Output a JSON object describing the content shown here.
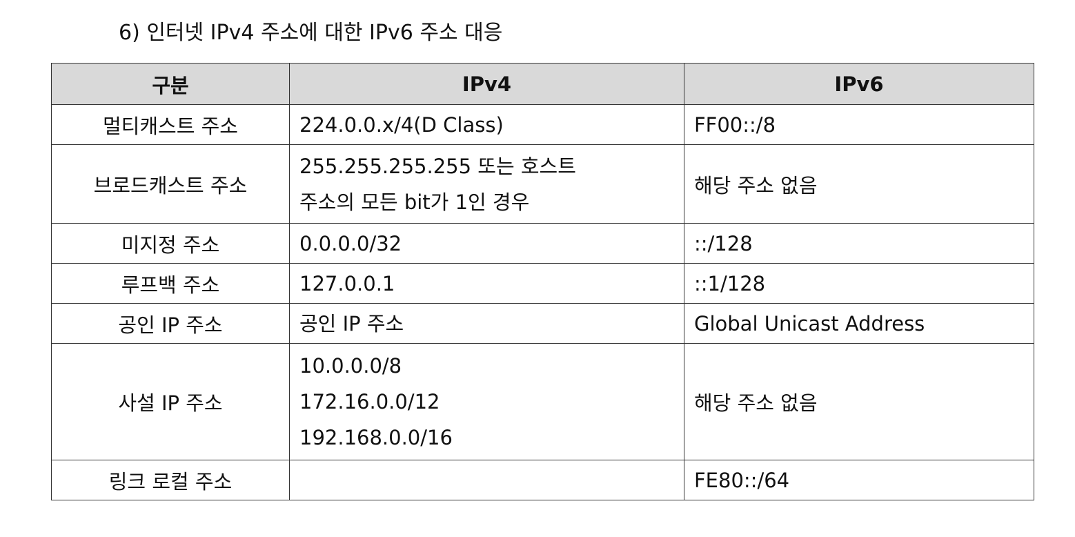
{
  "document": {
    "heading": "6) 인터넷 IPv4 주소에 대한 IPv6 주소 대응"
  },
  "table": {
    "headers": [
      "구분",
      "IPv4",
      "IPv6"
    ],
    "rows": [
      {
        "label": "멀티캐스트 주소",
        "ipv4": [
          "224.0.0.x/4(D Class)"
        ],
        "ipv6": "FF00::/8"
      },
      {
        "label": "브로드캐스트 주소",
        "ipv4": [
          "255.255.255.255 또는 호스트",
          "주소의 모든 bit가 1인 경우"
        ],
        "ipv6": "해당 주소 없음"
      },
      {
        "label": "미지정 주소",
        "ipv4": [
          "0.0.0.0/32"
        ],
        "ipv6": "::/128"
      },
      {
        "label": "루프백 주소",
        "ipv4": [
          "127.0.0.1"
        ],
        "ipv6": "::1/128"
      },
      {
        "label": "공인 IP 주소",
        "ipv4": [
          "공인 IP 주소"
        ],
        "ipv6": "Global Unicast Address"
      },
      {
        "label": "사설 IP 주소",
        "ipv4": [
          "10.0.0.0/8",
          "172.16.0.0/12",
          "192.168.0.0/16"
        ],
        "ipv6": "해당 주소 없음"
      },
      {
        "label": "링크 로컬 주소",
        "ipv4": [
          ""
        ],
        "ipv6": "FE80::/64"
      }
    ]
  }
}
